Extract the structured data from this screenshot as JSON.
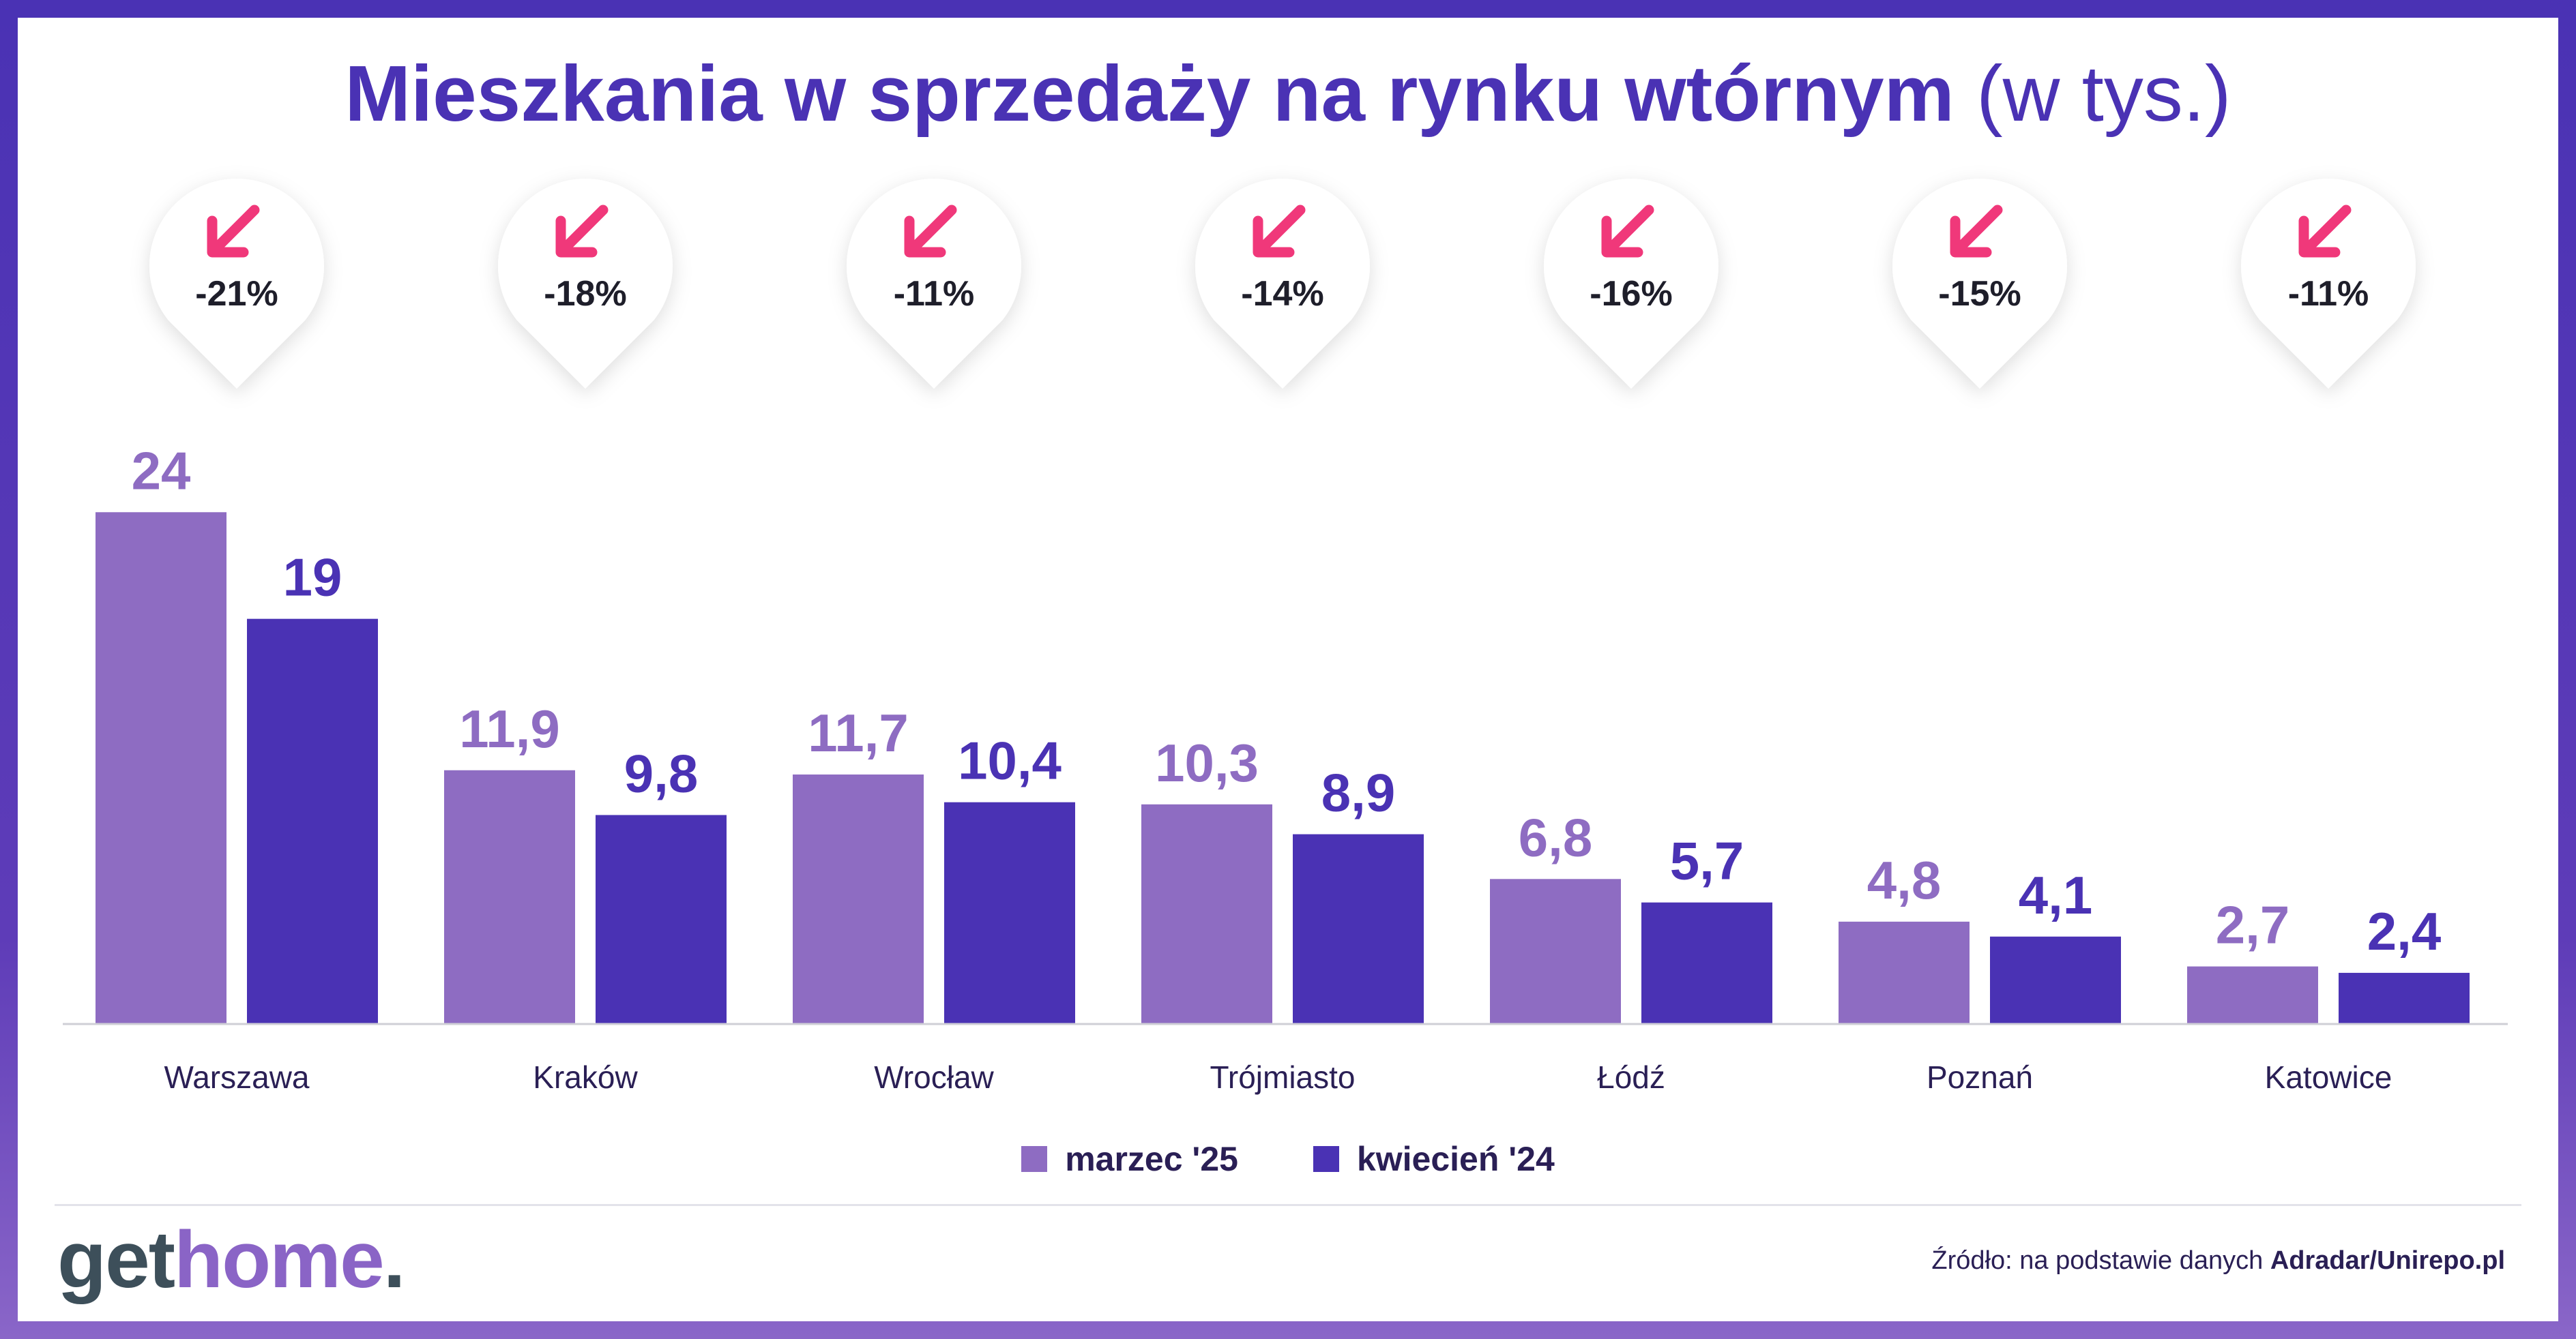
{
  "title": {
    "main": "Mieszkania w sprzedaży na rynku wtórnym",
    "unit": "(w tys.)"
  },
  "colors": {
    "series1": "#8e6cc2",
    "series2": "#4a32b4",
    "title": "#4a32b4",
    "arrow": "#f0387a",
    "logo_home": "#8a64c6",
    "logo_get": "#3d4f5a"
  },
  "icons": {
    "change_indicator": "arrow-down-left-icon"
  },
  "chart_data": {
    "type": "bar",
    "categories": [
      "Warszawa",
      "Kraków",
      "Wrocław",
      "Trójmiasto",
      "Łódź",
      "Poznań",
      "Katowice"
    ],
    "series": [
      {
        "name": "marzec '25",
        "values": [
          24,
          11.9,
          11.7,
          10.3,
          6.8,
          4.8,
          2.7
        ],
        "labels": [
          "24",
          "11,9",
          "11,7",
          "10,3",
          "6,8",
          "4,8",
          "2,7"
        ]
      },
      {
        "name": "kwiecień '24",
        "values": [
          19,
          9.8,
          10.4,
          8.9,
          5.7,
          4.1,
          2.4
        ],
        "labels": [
          "19",
          "9,8",
          "10,4",
          "8,9",
          "5,7",
          "4,1",
          "2,4"
        ]
      }
    ],
    "changes": [
      "-21%",
      "-18%",
      "-11%",
      "-14%",
      "-16%",
      "-15%",
      "-11%"
    ],
    "ylim": [
      0,
      25
    ],
    "grid": false,
    "legend": "bottom-center"
  },
  "legend": {
    "items": [
      "marzec '25",
      "kwiecień '24"
    ]
  },
  "footer": {
    "logo_get": "get",
    "logo_home": "home",
    "logo_dot": ".",
    "source_prefix": "Źródło: na podstawie danych",
    "source_name": "Adradar/Unirepo.pl"
  }
}
